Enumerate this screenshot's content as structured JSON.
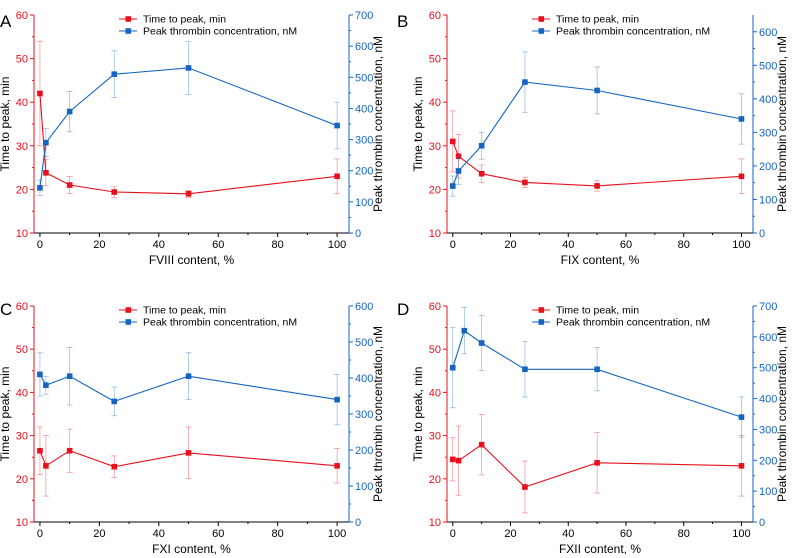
{
  "colors": {
    "red": "#e8101c",
    "blue": "#1565c0",
    "black": "#000000"
  },
  "chart_data": [
    {
      "type": "line",
      "panel": "A",
      "xlabel": "FVIII content, %",
      "ylabel_left": "Time to peak, min",
      "ylabel_right": "Peak thrombin concentration, nM",
      "xlim": [
        -2,
        104
      ],
      "xticks": [
        0,
        20,
        40,
        60,
        80,
        100
      ],
      "ylim_left": [
        10,
        60
      ],
      "yticks_left": [
        10,
        20,
        30,
        40,
        50,
        60
      ],
      "ylim_right": [
        0,
        700
      ],
      "yticks_right": [
        0,
        100,
        200,
        300,
        400,
        500,
        600,
        700
      ],
      "x": [
        0,
        2,
        10,
        25,
        50,
        100
      ],
      "series": [
        {
          "name": "Time to peak, min",
          "axis": "left",
          "color": "red",
          "values": [
            42,
            23.8,
            21,
            19.4,
            19,
            23
          ],
          "errors": [
            12,
            3,
            2,
            1.2,
            0.8,
            4
          ]
        },
        {
          "name": "Peak thrombin concentration, nM",
          "axis": "right",
          "color": "blue",
          "values": [
            145,
            290,
            390,
            510,
            530,
            345
          ],
          "errors": [
            25,
            45,
            65,
            75,
            85,
            75
          ]
        }
      ]
    },
    {
      "type": "line",
      "panel": "B",
      "xlabel": "FIX content, %",
      "ylabel_left": "Time to peak, min",
      "ylabel_right": "Peak thrombin concentration, nM",
      "xlim": [
        -2,
        104
      ],
      "xticks": [
        0,
        20,
        40,
        60,
        80,
        100
      ],
      "ylim_left": [
        10,
        60
      ],
      "yticks_left": [
        10,
        20,
        30,
        40,
        50,
        60
      ],
      "ylim_right": [
        0,
        650
      ],
      "yticks_right": [
        0,
        100,
        200,
        300,
        400,
        500,
        600
      ],
      "x": [
        0,
        2,
        10,
        25,
        50,
        100
      ],
      "series": [
        {
          "name": "Time to peak, min",
          "axis": "left",
          "color": "red",
          "values": [
            31,
            27.6,
            23.6,
            21.6,
            20.8,
            23
          ],
          "errors": [
            7,
            5,
            2,
            1.2,
            1.2,
            4
          ]
        },
        {
          "name": "Peak thrombin concentration, nM",
          "axis": "right",
          "color": "blue",
          "values": [
            140,
            185,
            260,
            450,
            425,
            340
          ],
          "errors": [
            30,
            40,
            40,
            90,
            70,
            75
          ]
        }
      ]
    },
    {
      "type": "line",
      "panel": "C",
      "xlabel": "FXI content, %",
      "ylabel_left": "Time to peak, min",
      "ylabel_right": "Peak thrombin concentration, nM",
      "xlim": [
        -2,
        104
      ],
      "xticks": [
        0,
        20,
        40,
        60,
        80,
        100
      ],
      "ylim_left": [
        10,
        60
      ],
      "yticks_left": [
        10,
        20,
        30,
        40,
        50,
        60
      ],
      "ylim_right": [
        0,
        600
      ],
      "yticks_right": [
        0,
        100,
        200,
        300,
        400,
        500,
        600
      ],
      "x": [
        0,
        2,
        10,
        25,
        50,
        100
      ],
      "series": [
        {
          "name": "Time to peak, min",
          "axis": "left",
          "color": "red",
          "values": [
            26.5,
            23,
            26.5,
            22.8,
            26,
            23
          ],
          "errors": [
            5.5,
            7,
            5,
            2.5,
            6,
            4
          ]
        },
        {
          "name": "Peak thrombin concentration, nM",
          "axis": "right",
          "color": "blue",
          "values": [
            410,
            380,
            405,
            335,
            405,
            340
          ],
          "errors": [
            60,
            25,
            80,
            40,
            65,
            70
          ]
        }
      ]
    },
    {
      "type": "line",
      "panel": "D",
      "xlabel": "FXII content, %",
      "ylabel_left": "Time to peak, min",
      "ylabel_right": "Peak thrombin concentration, nM",
      "xlim": [
        -2,
        104
      ],
      "xticks": [
        0,
        20,
        40,
        60,
        80,
        100
      ],
      "ylim_left": [
        10,
        60
      ],
      "yticks_left": [
        10,
        20,
        30,
        40,
        50,
        60
      ],
      "ylim_right": [
        0,
        700
      ],
      "yticks_right": [
        0,
        100,
        200,
        300,
        400,
        500,
        600,
        700
      ],
      "x": [
        0,
        2,
        4,
        10,
        25,
        50,
        100
      ],
      "series": [
        {
          "name": "Time to peak, min",
          "axis": "left",
          "color": "red",
          "values": [
            24.5,
            24.2,
            null,
            27.9,
            18.1,
            23.7,
            23
          ],
          "errors": [
            5,
            8,
            0,
            7,
            6,
            7,
            7
          ]
        },
        {
          "name": "Peak thrombin concentration, nM",
          "axis": "right",
          "color": "blue",
          "values": [
            500,
            null,
            620,
            580,
            495,
            495,
            340
          ],
          "errors": [
            130,
            0,
            75,
            90,
            90,
            70,
            65
          ]
        }
      ]
    }
  ]
}
